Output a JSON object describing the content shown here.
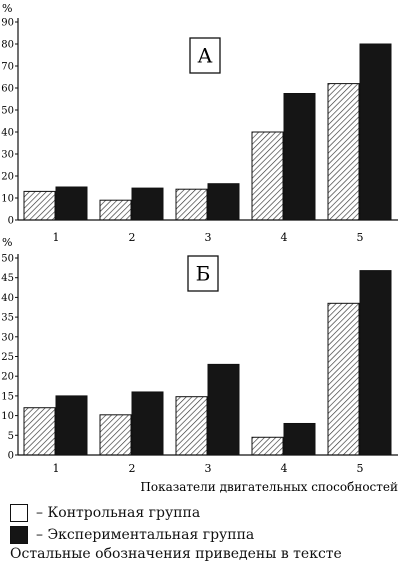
{
  "chart_data": [
    {
      "type": "bar",
      "panel_label": "А",
      "y_unit": "%",
      "categories": [
        "1",
        "2",
        "3",
        "4",
        "5"
      ],
      "series": [
        {
          "name": "Контрольная группа",
          "values": [
            13,
            9,
            14,
            40,
            62
          ],
          "fill": "hatched"
        },
        {
          "name": "Экспериментальная группа",
          "values": [
            15,
            14.5,
            16.5,
            57.5,
            80
          ],
          "fill": "#151515"
        }
      ],
      "ylim": [
        0,
        90
      ],
      "yticks": [
        0,
        10,
        20,
        30,
        40,
        50,
        60,
        70,
        80,
        90
      ],
      "xlabel": "",
      "grid": false
    },
    {
      "type": "bar",
      "panel_label": "Б",
      "y_unit": "%",
      "categories": [
        "1",
        "2",
        "3",
        "4",
        "5"
      ],
      "series": [
        {
          "name": "Контрольная группа",
          "values": [
            12,
            10.2,
            14.8,
            4.5,
            38.5
          ],
          "fill": "hatched"
        },
        {
          "name": "Экспериментальная группа",
          "values": [
            15,
            16,
            23,
            8,
            46.8
          ],
          "fill": "#151515"
        }
      ],
      "ylim": [
        0,
        50
      ],
      "yticks": [
        0,
        5,
        10,
        15,
        20,
        25,
        30,
        35,
        40,
        45,
        50
      ],
      "xlabel": "Показатели двигательных способностей",
      "grid": false
    }
  ],
  "legend": {
    "dash": "–",
    "control_label": "Контрольная группа",
    "experimental_label": "Экспериментальная группа"
  },
  "note": "Остальные обозначения приведены в тексте"
}
